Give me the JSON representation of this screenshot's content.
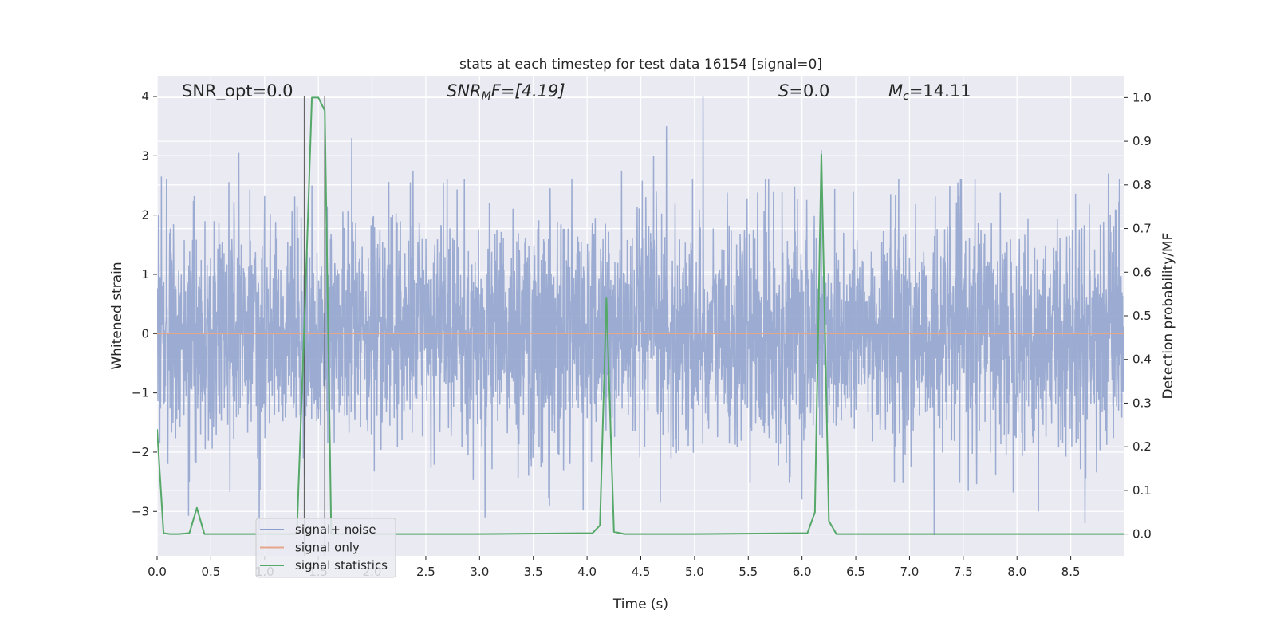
{
  "chart_data": {
    "type": "line",
    "title": "stats at each timestep for test data 16154 [signal=0]",
    "xlabel": "Time (s)",
    "ylabel_left": "Whitened strain",
    "ylabel_right": "Detection probability/MF",
    "xlim": [
      0.0,
      9.0
    ],
    "ylim_left": [
      -3.75,
      4.35
    ],
    "ylim_right": [
      -0.05,
      1.05
    ],
    "x_ticks": [
      "0.0",
      "0.5",
      "1.0",
      "1.5",
      "2.0",
      "2.5",
      "3.0",
      "3.5",
      "4.0",
      "4.5",
      "5.0",
      "5.5",
      "6.0",
      "6.5",
      "7.0",
      "7.5",
      "8.0",
      "8.5"
    ],
    "x_tick_values": [
      0,
      0.5,
      1,
      1.5,
      2,
      2.5,
      3,
      3.5,
      4,
      4.5,
      5,
      5.5,
      6,
      6.5,
      7,
      7.5,
      8,
      8.5
    ],
    "y_left_ticks": [
      "−3",
      "−2",
      "−1",
      "0",
      "1",
      "2",
      "3",
      "4"
    ],
    "y_left_tick_values": [
      -3,
      -2,
      -1,
      0,
      1,
      2,
      3,
      4
    ],
    "y_right_ticks": [
      "0.0",
      "0.1",
      "0.2",
      "0.3",
      "0.4",
      "0.5",
      "0.6",
      "0.7",
      "0.8",
      "0.9",
      "1.0"
    ],
    "y_right_tick_values": [
      0,
      0.1,
      0.2,
      0.3,
      0.4,
      0.5,
      0.6,
      0.7,
      0.8,
      0.9,
      1.0
    ],
    "annotations": {
      "snr_opt": "SNR_opt=0.0",
      "snr_mf_label": "SNR",
      "snr_mf_sub": "M",
      "snr_mf_rest": "F=[4.19]",
      "s_label": "S",
      "s_rest": "=0.0",
      "mc_label": "M",
      "mc_sub": "c",
      "mc_rest": "=14.11"
    },
    "series": [
      {
        "name": "signal+ noise",
        "color": "#8da0cb",
        "axis": "left",
        "description": "whitened noise, roughly between -3.4 and 4.0",
        "std": 0.95,
        "peaks": [
          {
            "x": 0.04,
            "y": 2.65
          },
          {
            "x": 0.76,
            "y": 3.05
          },
          {
            "x": 1.44,
            "y": 2.5
          },
          {
            "x": 1.81,
            "y": 3.3
          },
          {
            "x": 2.38,
            "y": 2.75
          },
          {
            "x": 4.32,
            "y": 2.75
          },
          {
            "x": 4.62,
            "y": 3.0
          },
          {
            "x": 4.74,
            "y": 3.5
          },
          {
            "x": 5.08,
            "y": 4.0
          },
          {
            "x": 6.18,
            "y": 3.1
          },
          {
            "x": 7.45,
            "y": 2.55
          },
          {
            "x": 8.85,
            "y": 2.7
          },
          {
            "x": 0.1,
            "y": -2.2
          },
          {
            "x": 0.95,
            "y": -3.3
          },
          {
            "x": 3.05,
            "y": -3.1
          },
          {
            "x": 3.65,
            "y": -2.9
          },
          {
            "x": 6.0,
            "y": -2.8
          },
          {
            "x": 7.23,
            "y": -3.4
          },
          {
            "x": 8.2,
            "y": -3.0
          }
        ]
      },
      {
        "name": "signal only",
        "color": "#e5a689",
        "axis": "left",
        "x": [
          0.0,
          9.0
        ],
        "y": [
          0.0,
          0.0
        ]
      },
      {
        "name": "signal statistics",
        "color": "#55a868",
        "axis": "right",
        "x": [
          0.0,
          0.06,
          0.12,
          0.2,
          0.3,
          0.37,
          0.44,
          0.55,
          1.3,
          1.38,
          1.44,
          1.5,
          1.56,
          1.62,
          2.0,
          3.0,
          4.05,
          4.12,
          4.18,
          4.25,
          4.35,
          5.0,
          6.05,
          6.12,
          6.18,
          6.25,
          6.32,
          6.5,
          7.5,
          9.0
        ],
        "y": [
          0.24,
          0.002,
          0.0,
          0.0,
          0.002,
          0.06,
          0.0,
          0.0,
          0.0,
          0.55,
          1.0,
          1.0,
          0.97,
          0.0,
          0.0,
          0.0,
          0.002,
          0.02,
          0.54,
          0.005,
          0.0,
          0.0,
          0.002,
          0.05,
          0.87,
          0.03,
          0.0,
          0.0,
          0.0,
          0.0
        ]
      }
    ],
    "vertical_markers": [
      {
        "x": 1.37,
        "color": "#555555"
      },
      {
        "x": 1.56,
        "color": "#555555"
      }
    ],
    "legend": {
      "location": "lower-left",
      "entries": [
        {
          "label": "signal+ noise",
          "color": "#8da0cb"
        },
        {
          "label": "signal only",
          "color": "#e5a689"
        },
        {
          "label": "signal statistics",
          "color": "#55a868"
        }
      ]
    },
    "colors": {
      "plot_bg": "#eaeaf2",
      "grid": "#ffffff",
      "text": "#262626"
    }
  }
}
